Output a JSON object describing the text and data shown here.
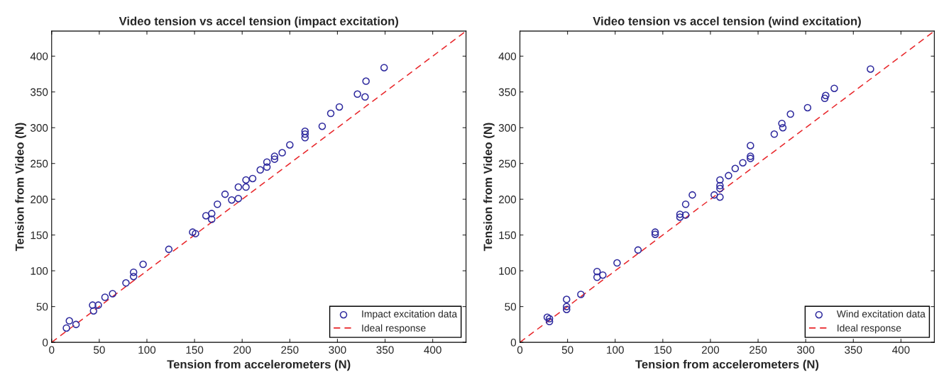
{
  "chart_data": [
    {
      "type": "scatter",
      "title": "Video tension vs accel tension (impact excitation)",
      "xlabel": "Tension from accelerometers (N)",
      "ylabel": "Tension from Video (N)",
      "xlim": [
        0,
        435
      ],
      "ylim": [
        0,
        435
      ],
      "xticks": [
        0,
        50,
        100,
        150,
        200,
        250,
        300,
        350,
        400
      ],
      "yticks": [
        0,
        50,
        100,
        150,
        200,
        250,
        300,
        350,
        400
      ],
      "legend": "bottom right",
      "series": [
        {
          "name": "Impact excitation data",
          "marker": "circle",
          "color": "#2e2a9e",
          "x": [
            15.5,
            18.6,
            25.6,
            43,
            44,
            49,
            56,
            64,
            78,
            86,
            86,
            96,
            123,
            148,
            151,
            162,
            168,
            168,
            174,
            182,
            189,
            196,
            196,
            204,
            204,
            211,
            219,
            226,
            226,
            234,
            234,
            242,
            250,
            266,
            266,
            266,
            284,
            293,
            302,
            321,
            329,
            330,
            349
          ],
          "values": [
            20,
            30,
            25,
            52,
            44,
            52,
            63,
            68,
            83,
            98,
            92,
            109,
            130,
            154,
            152,
            177,
            180,
            172,
            193,
            207,
            199,
            217,
            201,
            227,
            217,
            229,
            241,
            252,
            245,
            260,
            256,
            265,
            276,
            295,
            291,
            286,
            302,
            320,
            329,
            347,
            343,
            365,
            384
          ]
        },
        {
          "name": "Ideal response",
          "type": "line",
          "line_style": "dashed",
          "marker": "none",
          "color": "#e8262a",
          "x": [
            0,
            435
          ],
          "values": [
            0,
            435
          ]
        }
      ]
    },
    {
      "type": "scatter",
      "title": "Video tension vs accel tension (wind excitation)",
      "xlabel": "Tension from accelerometers (N)",
      "ylabel": "Tension from Video (N)",
      "xlim": [
        0,
        435
      ],
      "ylim": [
        0,
        435
      ],
      "xticks": [
        0,
        50,
        100,
        150,
        200,
        250,
        300,
        350,
        400
      ],
      "yticks": [
        0,
        50,
        100,
        150,
        200,
        250,
        300,
        350,
        400
      ],
      "legend": "bottom right",
      "series": [
        {
          "name": "Wind excitation data",
          "marker": "circle",
          "color": "#2e2a9e",
          "x": [
            28.7,
            31,
            31,
            49,
            49,
            49,
            64,
            81,
            81,
            87,
            102,
            124,
            142,
            142,
            168,
            168,
            174,
            174,
            181,
            204,
            210,
            210,
            210,
            210,
            219,
            226,
            234,
            242,
            242,
            242,
            267,
            275,
            276,
            284,
            302,
            320,
            321,
            330,
            368
          ],
          "values": [
            35,
            29,
            33,
            60,
            50,
            46,
            67,
            99,
            91,
            94,
            111,
            129,
            154,
            151,
            179,
            175,
            178,
            193,
            206,
            206,
            227,
            219,
            215,
            203,
            233,
            243,
            251,
            275,
            257,
            260,
            291,
            306,
            300,
            319,
            328,
            341,
            345,
            355,
            382
          ]
        },
        {
          "name": "Ideal response",
          "type": "line",
          "line_style": "dashed",
          "marker": "none",
          "color": "#e8262a",
          "x": [
            0,
            435
          ],
          "values": [
            0,
            435
          ]
        }
      ]
    }
  ]
}
